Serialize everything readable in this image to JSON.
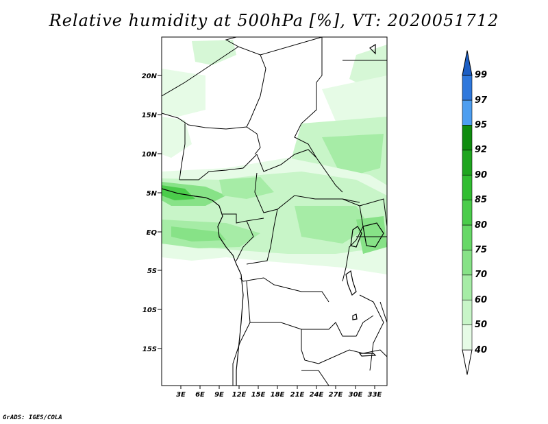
{
  "title": "Relative humidity at 500hPa [%], VT: 2020051712",
  "credit": "GrADS: IGES/COLA",
  "map": {
    "lat_labels": [
      "20N",
      "15N",
      "10N",
      "5N",
      "EQ",
      "5S",
      "10S",
      "15S"
    ],
    "lon_labels": [
      "3E",
      "6E",
      "9E",
      "12E",
      "15E",
      "18E",
      "21E",
      "24E",
      "27E",
      "30E",
      "33E"
    ]
  },
  "colorbar": {
    "labels": [
      "40",
      "50",
      "60",
      "70",
      "75",
      "80",
      "85",
      "90",
      "92",
      "95",
      "97",
      "99"
    ],
    "colors": [
      "#ffffff",
      "#e6fbe6",
      "#c8f5c8",
      "#a6eca6",
      "#87e287",
      "#67d867",
      "#4bcc4b",
      "#31bd31",
      "#1fa51f",
      "#0f8c0f",
      "#4d9ef0",
      "#2f78dc",
      "#1c5ec4"
    ]
  }
}
